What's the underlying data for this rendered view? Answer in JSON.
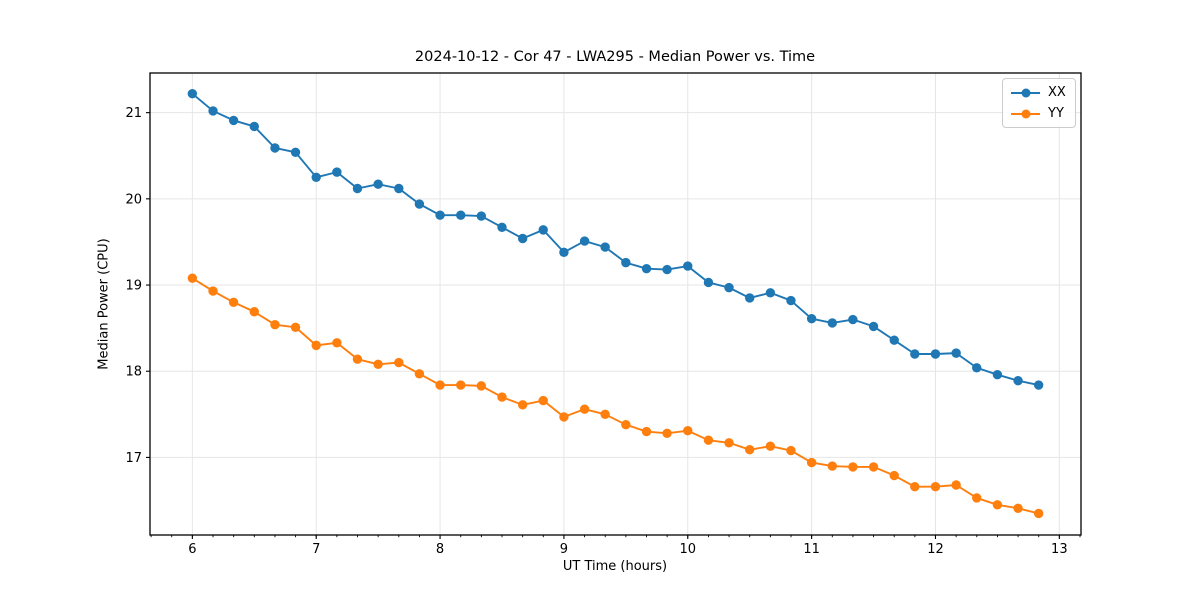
{
  "chart_data": {
    "type": "line",
    "title": "2024-10-12 - Cor 47 - LWA295 - Median Power vs. Time",
    "xlabel": "UT Time (hours)",
    "ylabel": "Median Power (CPU)",
    "x": [
      6.0,
      6.167,
      6.333,
      6.5,
      6.667,
      6.833,
      7.0,
      7.167,
      7.333,
      7.5,
      7.667,
      7.833,
      8.0,
      8.167,
      8.333,
      8.5,
      8.667,
      8.833,
      9.0,
      9.167,
      9.333,
      9.5,
      9.667,
      9.833,
      10.0,
      10.167,
      10.333,
      10.5,
      10.667,
      10.833,
      11.0,
      11.167,
      11.333,
      11.5,
      11.667,
      11.833,
      12.0,
      12.167,
      12.333,
      12.5,
      12.667,
      12.833
    ],
    "series": [
      {
        "name": "XX",
        "color": "#1f77b4",
        "marker": "circle",
        "values": [
          21.22,
          21.02,
          20.91,
          20.84,
          20.59,
          20.54,
          20.25,
          20.31,
          20.12,
          20.17,
          20.12,
          19.94,
          19.81,
          19.81,
          19.8,
          19.67,
          19.54,
          19.64,
          19.38,
          19.51,
          19.44,
          19.26,
          19.19,
          19.18,
          19.22,
          19.03,
          18.97,
          18.85,
          18.91,
          18.82,
          18.61,
          18.56,
          18.6,
          18.52,
          18.36,
          18.2,
          18.2,
          18.21,
          18.04,
          17.96,
          17.89,
          17.84
        ]
      },
      {
        "name": "YY",
        "color": "#ff7f0e",
        "marker": "circle",
        "values": [
          19.08,
          18.93,
          18.8,
          18.69,
          18.54,
          18.51,
          18.3,
          18.33,
          18.14,
          18.08,
          18.1,
          17.97,
          17.84,
          17.84,
          17.83,
          17.7,
          17.61,
          17.66,
          17.47,
          17.56,
          17.5,
          17.38,
          17.3,
          17.28,
          17.31,
          17.2,
          17.17,
          17.09,
          17.13,
          17.08,
          16.94,
          16.9,
          16.89,
          16.89,
          16.79,
          16.66,
          16.66,
          16.68,
          16.53,
          16.45,
          16.41,
          16.35
        ]
      }
    ],
    "xlim": [
      5.658,
      13.175
    ],
    "ylim": [
      16.1,
      21.46
    ],
    "xticks": [
      6,
      7,
      8,
      9,
      10,
      11,
      12,
      13
    ],
    "yticks": [
      17,
      18,
      19,
      20,
      21
    ],
    "x_minor_step": 0.16667,
    "grid": true,
    "grid_color": "#e6e6e6",
    "spine_color": "#000000",
    "legend": {
      "position": "upper right",
      "labels": [
        "XX",
        "YY"
      ]
    }
  }
}
